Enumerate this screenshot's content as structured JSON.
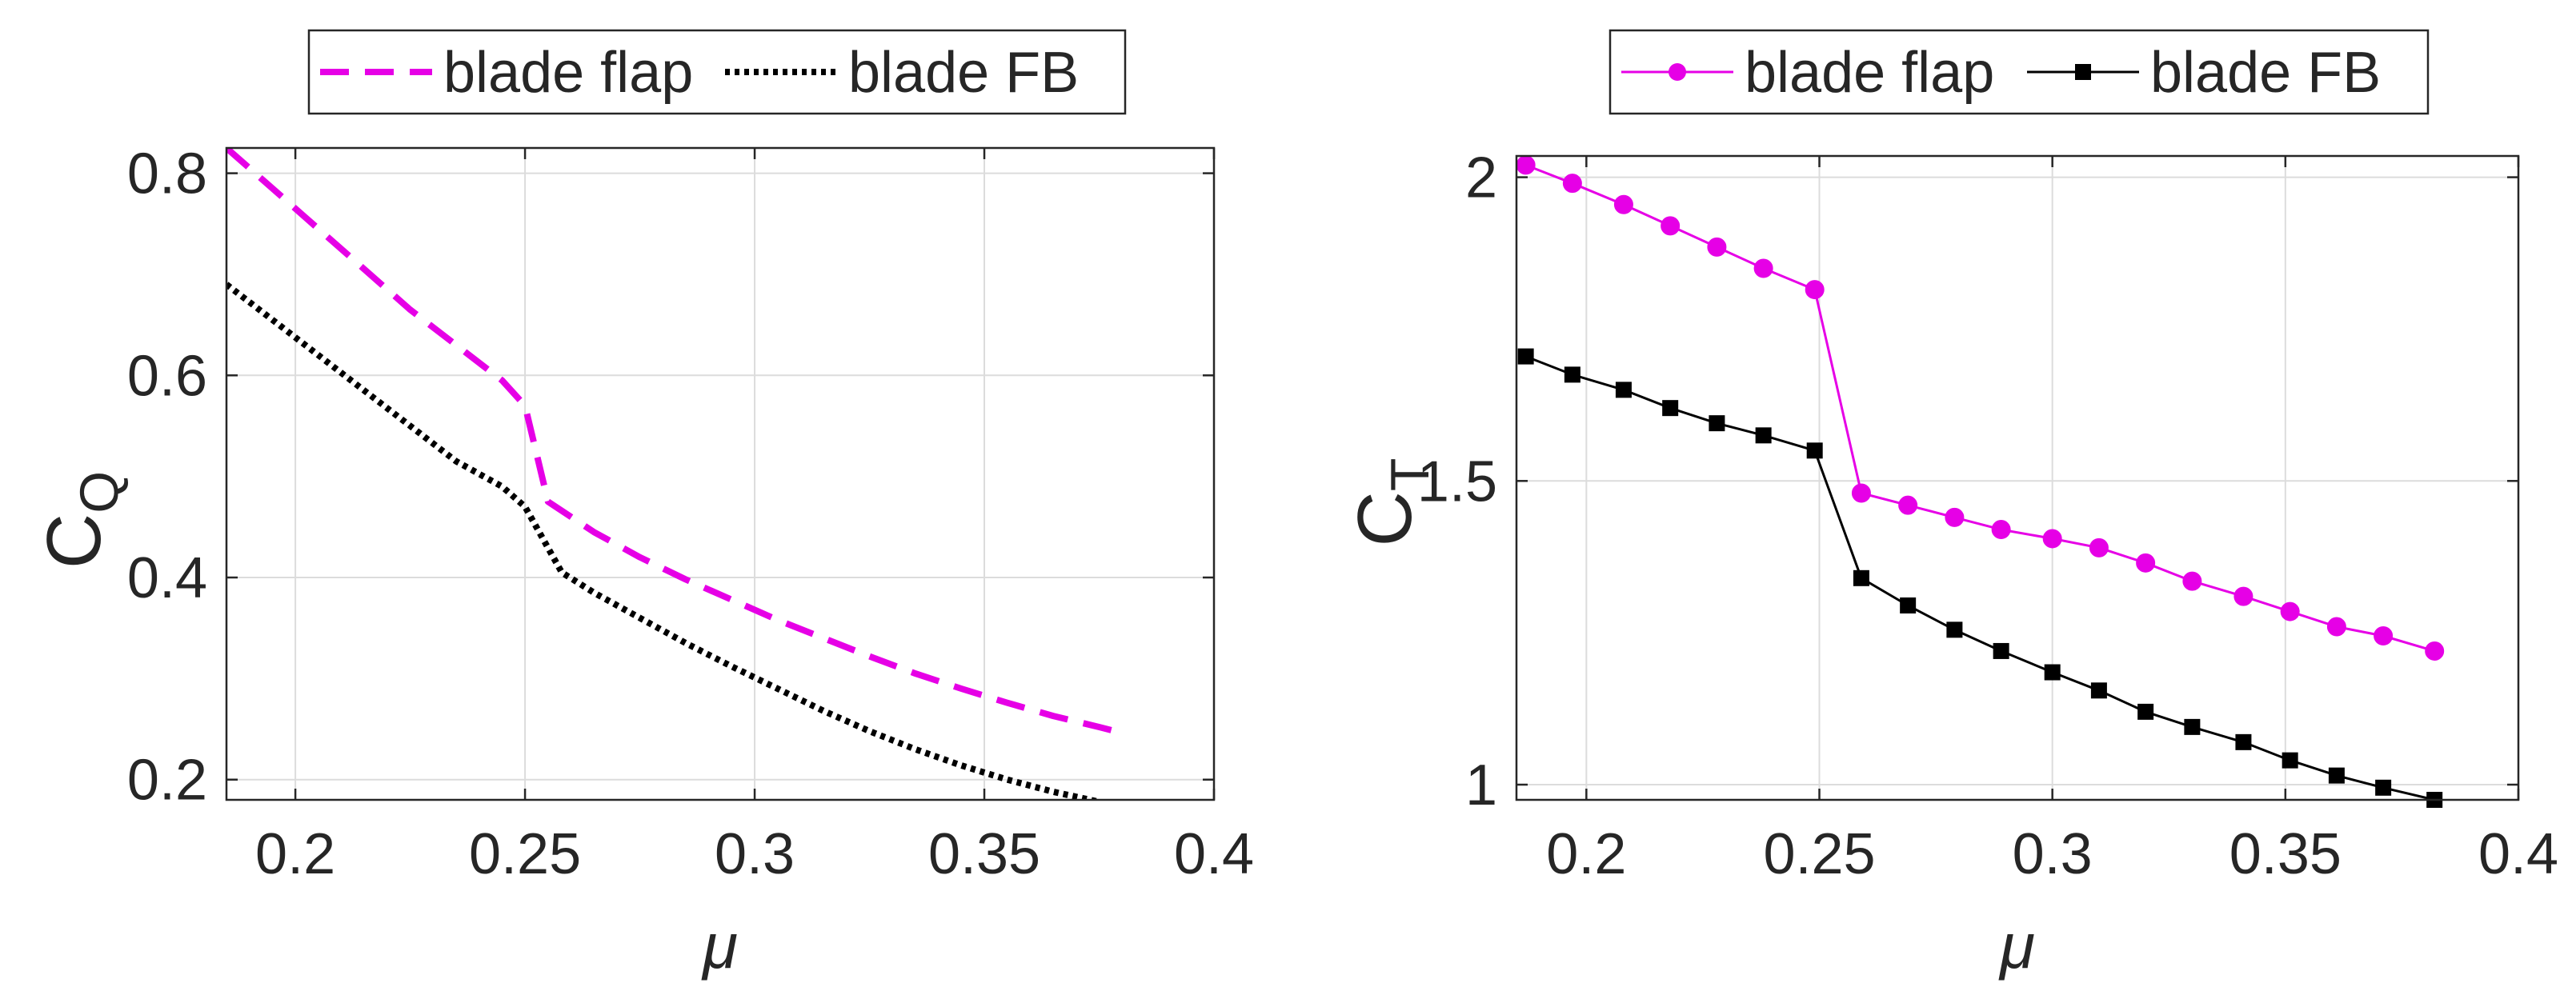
{
  "chart_data": [
    {
      "type": "line",
      "xlabel": "μ",
      "ylabel": "C",
      "ylabel_subscript": "Q",
      "xlim": [
        0.185,
        0.4
      ],
      "ylim": [
        0.18,
        0.825
      ],
      "xticks": [
        0.2,
        0.25,
        0.3,
        0.35,
        0.4
      ],
      "xtick_labels": [
        "0.2",
        "0.25",
        "0.3",
        "0.35",
        "0.4"
      ],
      "yticks": [
        0.2,
        0.4,
        0.6,
        0.8
      ],
      "ytick_labels": [
        "0.2",
        "0.4",
        "0.6",
        "0.8"
      ],
      "grid": true,
      "legend_position": "top-center-outside",
      "series": [
        {
          "name": "blade flap",
          "color": "#e600e6",
          "style": "dashed",
          "marker": "none",
          "x": [
            0.185,
            0.195,
            0.205,
            0.215,
            0.225,
            0.235,
            0.245,
            0.25,
            0.255,
            0.265,
            0.275,
            0.285,
            0.295,
            0.305,
            0.315,
            0.325,
            0.335,
            0.345,
            0.355,
            0.365,
            0.375,
            0.381
          ],
          "y": [
            0.825,
            0.785,
            0.745,
            0.705,
            0.665,
            0.63,
            0.595,
            0.57,
            0.475,
            0.445,
            0.42,
            0.398,
            0.378,
            0.358,
            0.34,
            0.322,
            0.305,
            0.29,
            0.276,
            0.263,
            0.252,
            0.245
          ]
        },
        {
          "name": "blade FB",
          "color": "#000000",
          "style": "dotted",
          "marker": "none",
          "x": [
            0.185,
            0.195,
            0.205,
            0.215,
            0.225,
            0.235,
            0.245,
            0.25,
            0.258,
            0.265,
            0.275,
            0.285,
            0.295,
            0.305,
            0.315,
            0.325,
            0.335,
            0.345,
            0.355,
            0.365,
            0.375,
            0.38
          ],
          "y": [
            0.69,
            0.655,
            0.62,
            0.585,
            0.55,
            0.515,
            0.49,
            0.47,
            0.405,
            0.385,
            0.36,
            0.335,
            0.312,
            0.29,
            0.268,
            0.248,
            0.23,
            0.214,
            0.2,
            0.188,
            0.178,
            0.172
          ]
        }
      ]
    },
    {
      "type": "line",
      "xlabel": "μ",
      "ylabel": "C",
      "ylabel_subscript": "T",
      "xlim": [
        0.185,
        0.4
      ],
      "ylim": [
        0.975,
        2.035
      ],
      "xticks": [
        0.2,
        0.25,
        0.3,
        0.35,
        0.4
      ],
      "xtick_labels": [
        "0.2",
        "0.25",
        "0.3",
        "0.35",
        "0.4"
      ],
      "yticks": [
        1,
        1.5,
        2
      ],
      "ytick_labels": [
        "1",
        "1.5",
        "2"
      ],
      "grid": true,
      "legend_position": "top-center-outside",
      "series": [
        {
          "name": "blade flap",
          "color": "#e600e6",
          "style": "solid",
          "marker": "circle",
          "x": [
            0.187,
            0.197,
            0.208,
            0.218,
            0.228,
            0.238,
            0.249,
            0.259,
            0.269,
            0.279,
            0.289,
            0.3,
            0.31,
            0.32,
            0.33,
            0.341,
            0.351,
            0.361,
            0.371,
            0.382
          ],
          "y": [
            2.02,
            1.99,
            1.955,
            1.92,
            1.885,
            1.85,
            1.815,
            1.48,
            1.46,
            1.44,
            1.42,
            1.405,
            1.39,
            1.365,
            1.335,
            1.31,
            1.285,
            1.26,
            1.245,
            1.22
          ]
        },
        {
          "name": "blade FB",
          "color": "#000000",
          "style": "solid",
          "marker": "square",
          "x": [
            0.187,
            0.197,
            0.208,
            0.218,
            0.228,
            0.238,
            0.249,
            0.259,
            0.269,
            0.279,
            0.289,
            0.3,
            0.31,
            0.32,
            0.33,
            0.341,
            0.351,
            0.361,
            0.371,
            0.382
          ],
          "y": [
            1.705,
            1.675,
            1.65,
            1.62,
            1.595,
            1.575,
            1.55,
            1.34,
            1.295,
            1.255,
            1.22,
            1.185,
            1.155,
            1.12,
            1.095,
            1.07,
            1.04,
            1.015,
            0.995,
            0.975
          ]
        }
      ]
    }
  ]
}
